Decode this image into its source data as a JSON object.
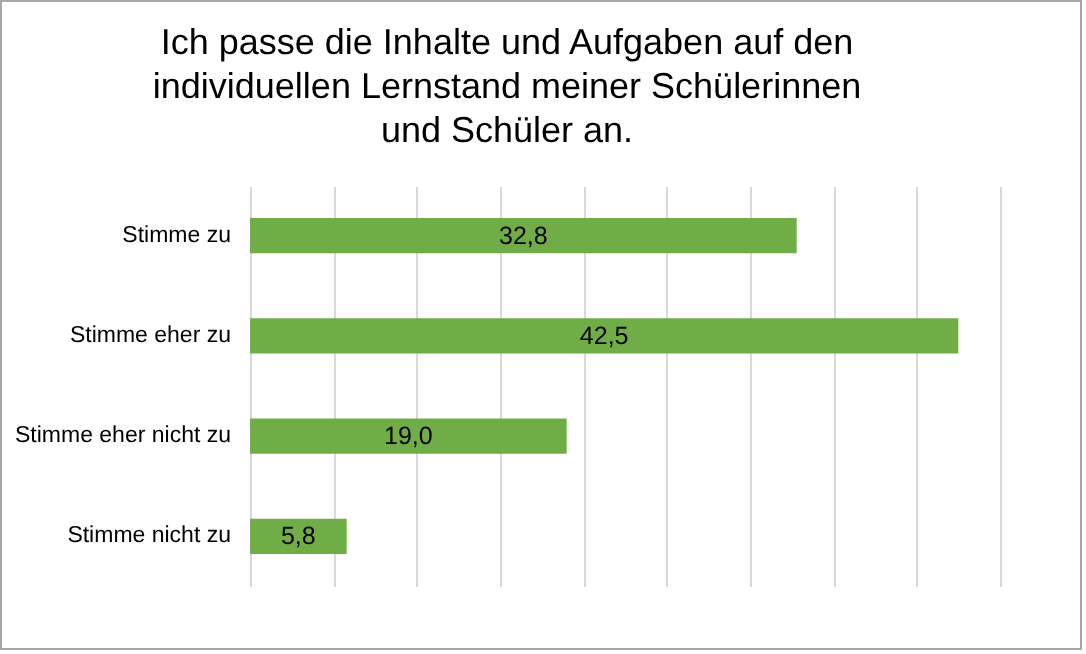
{
  "chart_data": {
    "type": "bar",
    "orientation": "horizontal",
    "title": "Ich passe die Inhalte und Aufgaben auf den individuellen Lernstand meiner Schülerinnen und Schüler an.",
    "categories": [
      "Stimme zu",
      "Stimme eher zu",
      "Stimme eher nicht zu",
      "Stimme nicht zu"
    ],
    "values": [
      32.8,
      42.5,
      19.0,
      5.8
    ],
    "value_labels": [
      "32,8",
      "42,5",
      "19,0",
      "5,8"
    ],
    "color": "#70ad47",
    "xlim": [
      0,
      45
    ],
    "xticks": [
      {
        "value": 0,
        "label": null
      },
      {
        "value": 5,
        "label": null
      },
      {
        "value": 10,
        "label": null
      },
      {
        "value": 15,
        "label": null
      },
      {
        "value": 20,
        "label": null
      },
      {
        "value": 25,
        "label": null
      },
      {
        "value": 30,
        "label": null
      },
      {
        "value": 35,
        "label": null
      },
      {
        "value": 40,
        "label": null
      },
      {
        "value": 45,
        "label": null
      }
    ],
    "grid": "x",
    "tick_labels": "y"
  }
}
